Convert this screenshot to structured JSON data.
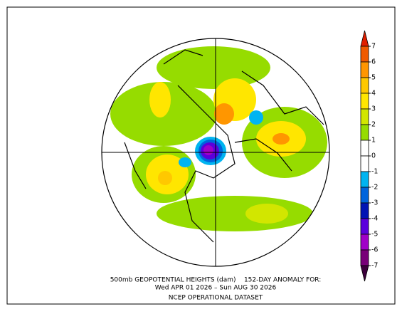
{
  "caption": {
    "line1": "500mb GEOPOTENTIAL HEIGHTS (dam)    152-DAY ANOMALY FOR:",
    "line2": "Wed APR 01 2026 – Sun AUG 30 2026",
    "line3": "NCEP OPERATIONAL DATASET"
  },
  "colorbar": {
    "ticks": [
      7,
      6,
      5,
      4,
      3,
      2,
      1,
      0,
      -1,
      -2,
      -3,
      -4,
      -5,
      -6,
      -7
    ],
    "colors": [
      "#e01e00",
      "#f05a00",
      "#ff9600",
      "#ffc800",
      "#ffe600",
      "#d2e600",
      "#96dc00",
      "#ffffff",
      "#ffffff",
      "#00b4f0",
      "#0064dc",
      "#0014b4",
      "#5a00dc",
      "#a000c8",
      "#780078",
      "#3c003c"
    ]
  }
}
